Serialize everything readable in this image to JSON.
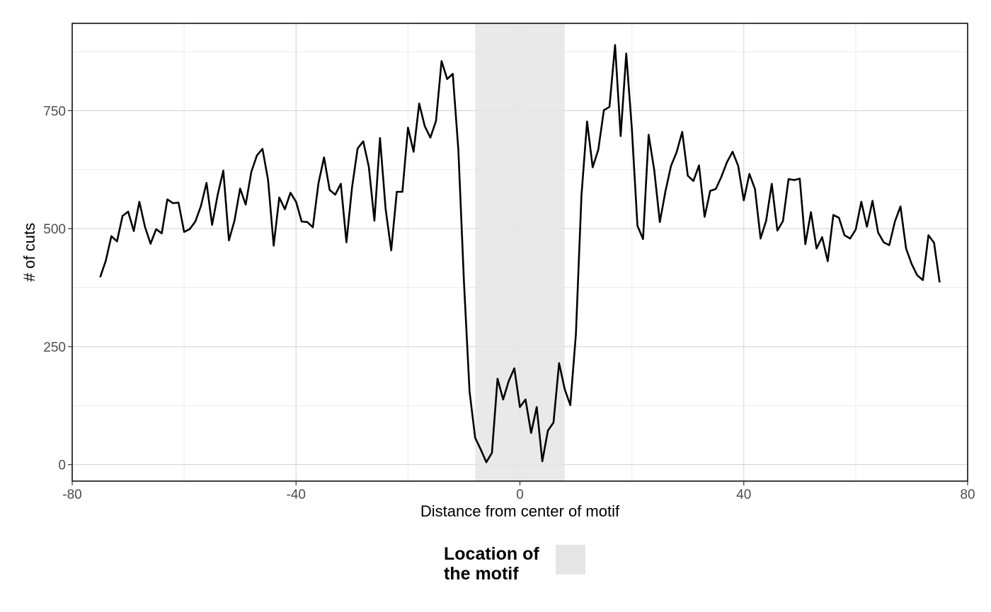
{
  "chart_data": {
    "type": "line",
    "title": "",
    "xlabel": "Distance from center of motif",
    "ylabel": "# of cuts",
    "xlim": [
      -80,
      80
    ],
    "ylim": [
      -35,
      935
    ],
    "x_ticks": [
      -80,
      -40,
      0,
      40,
      80
    ],
    "x_tick_labels": [
      "-80",
      "-40",
      "0",
      "40",
      "80"
    ],
    "y_ticks": [
      0,
      250,
      500,
      750
    ],
    "y_tick_labels": [
      "0",
      "250",
      "500",
      "750"
    ],
    "grid": true,
    "legend_position": "bottom",
    "legend": {
      "title": "Location of the motif",
      "title_lines": [
        "Location of",
        "the motif"
      ],
      "fill_color": "#e5e5e5"
    },
    "shaded_region": {
      "x_start": -8,
      "x_end": 8,
      "color": "#e5e5e5"
    },
    "line_color": "#000000",
    "series": [
      {
        "x": [
          -75,
          -74,
          -73,
          -72,
          -71,
          -70,
          -69,
          -68,
          -67,
          -66,
          -65,
          -64,
          -63,
          -62,
          -61,
          -60,
          -59,
          -58,
          -57,
          -56,
          -55,
          -54,
          -53,
          -52,
          -51,
          -50,
          -49,
          -48,
          -47,
          -46,
          -45,
          -44,
          -43,
          -42,
          -41,
          -40,
          -39,
          -38,
          -37,
          -36,
          -35,
          -34,
          -33,
          -32,
          -31,
          -30,
          -29,
          -28,
          -27,
          -26,
          -25,
          -24,
          -23,
          -22,
          -21,
          -20,
          -19,
          -18,
          -17,
          -16,
          -15,
          -14,
          -13,
          -12,
          -11,
          -10,
          -9,
          -8,
          -7,
          -6,
          -5,
          -4,
          -3,
          -2,
          -1,
          0,
          1,
          2,
          3,
          4,
          5,
          6,
          7,
          8,
          9,
          10,
          11,
          12,
          13,
          14,
          15,
          16,
          17,
          18,
          19,
          20,
          21,
          22,
          23,
          24,
          25,
          26,
          27,
          28,
          29,
          30,
          31,
          32,
          33,
          34,
          35,
          36,
          37,
          38,
          39,
          40,
          41,
          42,
          43,
          44,
          45,
          46,
          47,
          48,
          49,
          50,
          51,
          52,
          53,
          54,
          55,
          56,
          57,
          58,
          59,
          60,
          61,
          62,
          63,
          64,
          65,
          66,
          67,
          68,
          69,
          70,
          71,
          72,
          73,
          74,
          75
        ],
        "y": [
          397,
          432,
          484,
          473,
          527,
          536,
          495,
          557,
          504,
          468,
          499,
          490,
          562,
          554,
          555,
          493,
          499,
          515,
          548,
          597,
          508,
          572,
          623,
          475,
          517,
          585,
          551,
          620,
          655,
          669,
          603,
          464,
          566,
          541,
          576,
          557,
          515,
          514,
          503,
          596,
          651,
          582,
          572,
          595,
          471,
          587,
          670,
          685,
          631,
          517,
          692,
          542,
          454,
          578,
          578,
          714,
          663,
          765,
          717,
          693,
          728,
          855,
          817,
          828,
          667,
          387,
          155,
          57,
          32,
          5,
          25,
          182,
          138,
          177,
          204,
          122,
          138,
          67,
          122,
          7,
          72,
          89,
          215,
          160,
          126,
          276,
          571,
          727,
          630,
          667,
          751,
          758,
          889,
          696,
          871,
          712,
          506,
          478,
          699,
          624,
          514,
          579,
          633,
          662,
          705,
          612,
          601,
          634,
          525,
          580,
          584,
          610,
          641,
          663,
          633,
          560,
          616,
          584,
          479,
          517,
          595,
          496,
          516,
          605,
          603,
          606,
          467,
          535,
          458,
          482,
          431,
          529,
          523,
          486,
          479,
          498,
          557,
          504,
          559,
          492,
          471,
          465,
          515,
          547,
          458,
          425,
          401,
          391,
          486,
          470,
          386
        ]
      }
    ]
  }
}
